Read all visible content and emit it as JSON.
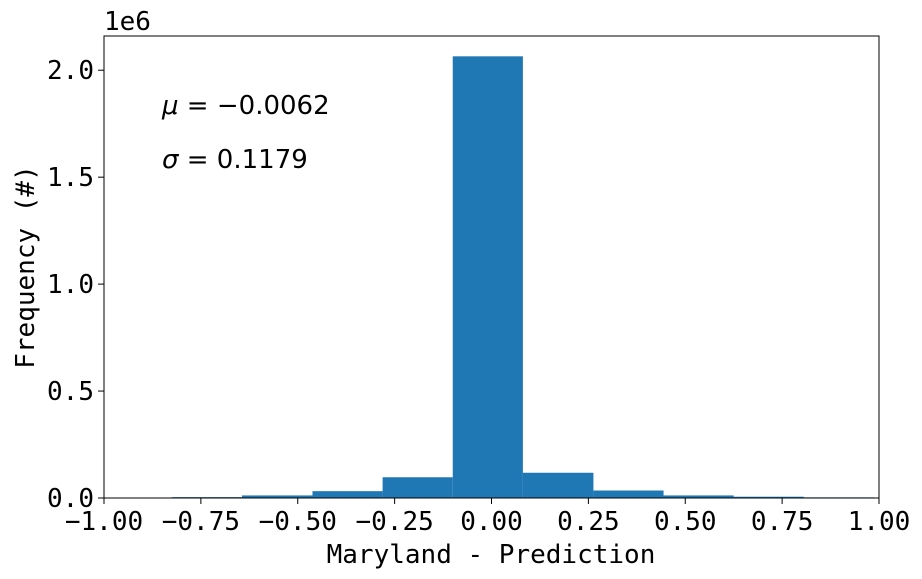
{
  "chart_data": {
    "type": "bar",
    "subtype": "histogram",
    "xlabel": "Maryland - Prediction",
    "ylabel": "Frequency (#)",
    "offset_text": "1e6",
    "xlim": [
      -1.0,
      1.0
    ],
    "ylim": [
      0,
      2160000
    ],
    "x_ticks": [
      -1.0,
      -0.75,
      -0.5,
      -0.25,
      0.0,
      0.25,
      0.5,
      0.75,
      1.0
    ],
    "x_tick_labels": [
      "−1.00",
      "−0.75",
      "−0.50",
      "−0.25",
      "0.00",
      "0.25",
      "0.50",
      "0.75",
      "1.00"
    ],
    "y_ticks": [
      0,
      500000,
      1000000,
      1500000,
      2000000
    ],
    "y_tick_labels": [
      "0.0",
      "0.5",
      "1.0",
      "1.5",
      "2.0"
    ],
    "bar_color": "#1f77b4",
    "bins": [
      {
        "x0": -0.825,
        "x1": -0.644,
        "value": 4000
      },
      {
        "x0": -0.644,
        "x1": -0.462,
        "value": 12000
      },
      {
        "x0": -0.462,
        "x1": -0.281,
        "value": 32000
      },
      {
        "x0": -0.281,
        "x1": -0.1,
        "value": 97000
      },
      {
        "x0": -0.1,
        "x1": 0.081,
        "value": 2065000
      },
      {
        "x0": 0.081,
        "x1": 0.263,
        "value": 118000
      },
      {
        "x0": 0.263,
        "x1": 0.444,
        "value": 35000
      },
      {
        "x0": 0.444,
        "x1": 0.625,
        "value": 12000
      },
      {
        "x0": 0.625,
        "x1": 0.806,
        "value": 6000
      },
      {
        "x0": 0.806,
        "x1": 0.988,
        "value": 3000
      }
    ],
    "annotations": [
      {
        "symbol": "μ",
        "text": " = −0.0062"
      },
      {
        "symbol": "σ",
        "text": " = 0.1179"
      }
    ],
    "grid": false
  }
}
